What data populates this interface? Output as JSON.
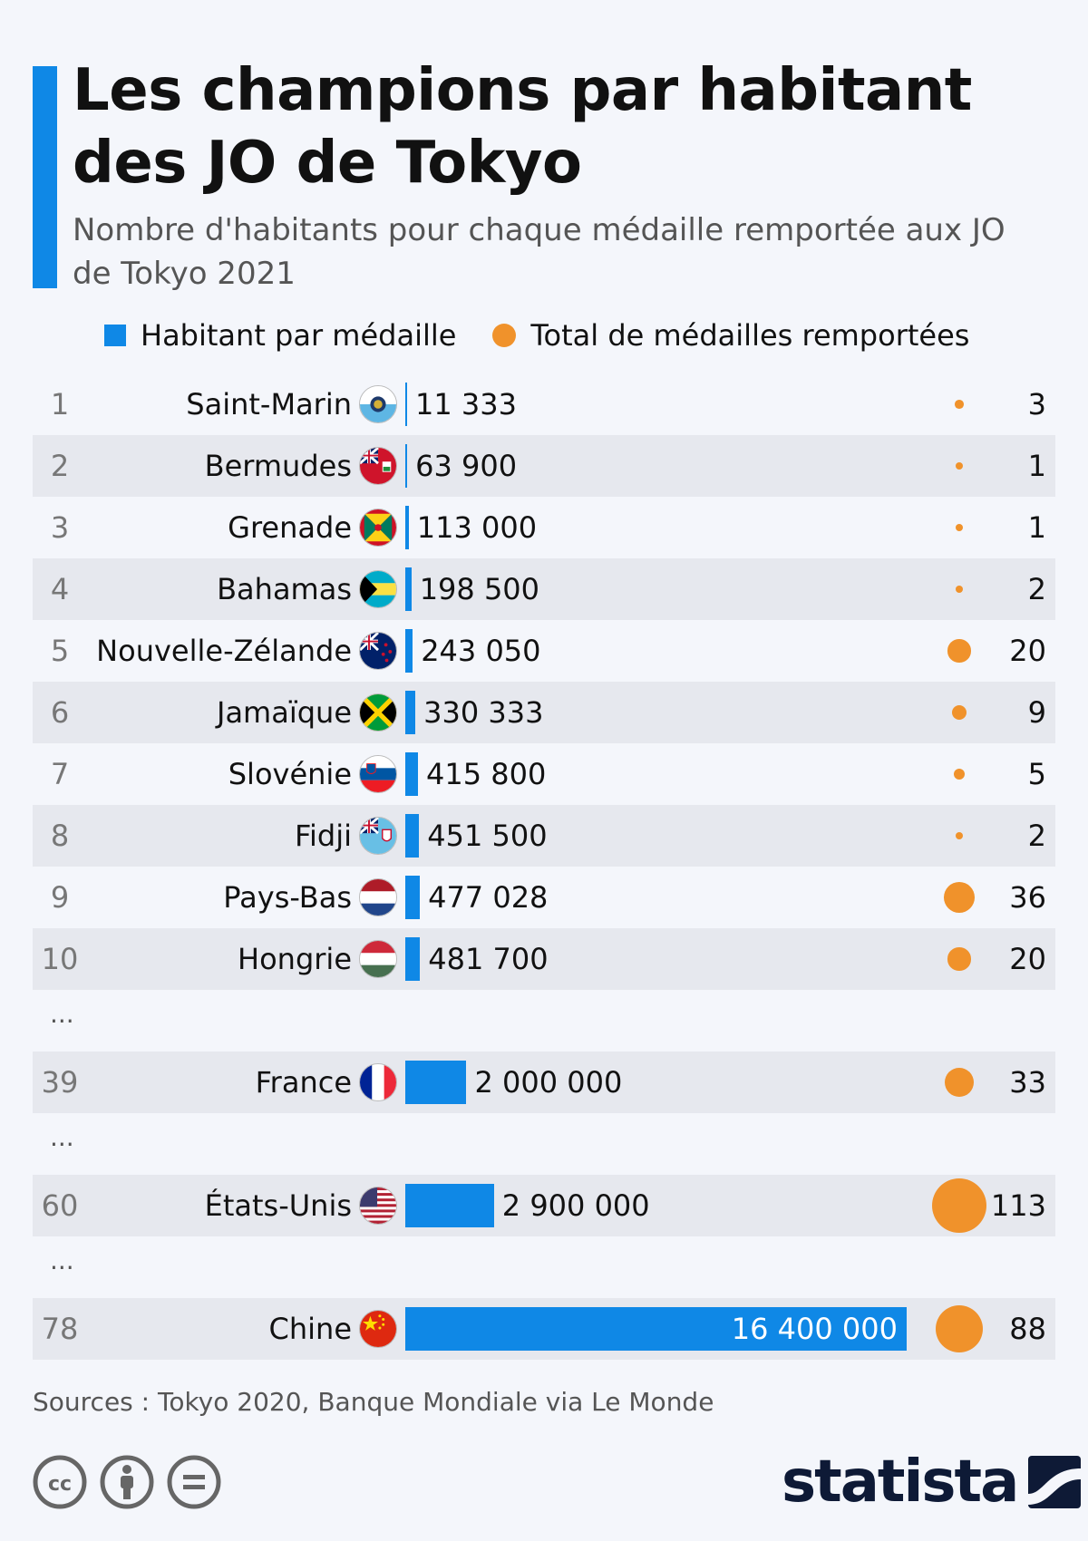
{
  "header": {
    "title": "Les champions par habitant des JO de Tokyo",
    "subtitle": "Nombre d'habitants pour chaque médaille remportée aux JO de Tokyo 2021"
  },
  "legend": {
    "bar_label": "Habitant par médaille",
    "dot_label": "Total de médailles remportées"
  },
  "colors": {
    "bar": "#0f88e6",
    "dot": "#f0922b",
    "accent": "#0f88e6",
    "row_band": "#e6e8ee"
  },
  "chart_data": {
    "type": "bar",
    "categories": [
      "Saint-Marin",
      "Bermudes",
      "Grenade",
      "Bahamas",
      "Nouvelle-Zélande",
      "Jamaïque",
      "Slovénie",
      "Fidji",
      "Pays-Bas",
      "Hongrie",
      "France",
      "États-Unis",
      "Chine"
    ],
    "ranks": [
      1,
      2,
      3,
      4,
      5,
      6,
      7,
      8,
      9,
      10,
      39,
      60,
      78
    ],
    "value_labels": [
      "11 333",
      "63 900",
      "113 000",
      "198 500",
      "243 050",
      "330 333",
      "415 800",
      "451 500",
      "477 028",
      "481 700",
      "2 000 000",
      "2 900 000",
      "16 400 000"
    ],
    "series": [
      {
        "name": "Habitant par médaille",
        "values": [
          11333,
          63900,
          113000,
          198500,
          243050,
          330333,
          415800,
          451500,
          477028,
          481700,
          2000000,
          2900000,
          16400000
        ]
      },
      {
        "name": "Total de médailles remportées",
        "values": [
          3,
          1,
          1,
          2,
          20,
          9,
          5,
          2,
          36,
          20,
          33,
          113,
          88
        ]
      }
    ],
    "ellipsis_after_rank": [
      10,
      39,
      60
    ],
    "ellipsis_label": "...",
    "flags": [
      "san-marino-flag",
      "bermuda-flag",
      "grenada-flag",
      "bahamas-flag",
      "new-zealand-flag",
      "jamaica-flag",
      "slovenia-flag",
      "fiji-flag",
      "netherlands-flag",
      "hungary-flag",
      "france-flag",
      "usa-flag",
      "china-flag"
    ]
  },
  "footer": {
    "source": "Sources : Tokyo 2020, Banque Mondiale via Le Monde",
    "brand": "statista",
    "license_icons": [
      "cc-icon",
      "by-icon",
      "nd-icon"
    ]
  }
}
